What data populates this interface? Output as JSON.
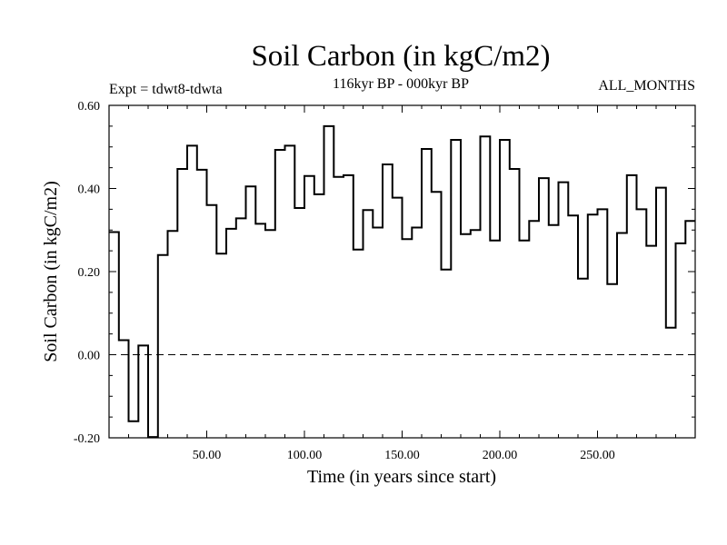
{
  "chart_data": {
    "type": "line",
    "style": "step",
    "title": "Soil Carbon (in kgC/m2)",
    "subtitle": "116kyr BP - 000kyr BP",
    "left_note": "Expt = tdwt8-tdwta",
    "right_note": "ALL_MONTHS",
    "xlabel": "Time (in years since start)",
    "ylabel": "Soil Carbon (in kgC/m2)",
    "xlim": [
      0,
      300
    ],
    "ylim": [
      -0.2,
      0.6
    ],
    "xticks": [
      50,
      100,
      150,
      200,
      250
    ],
    "xtick_labels": [
      "50.00",
      "100.00",
      "150.00",
      "200.00",
      "250.00"
    ],
    "yticks": [
      -0.2,
      0.0,
      0.2,
      0.4,
      0.6
    ],
    "ytick_labels": [
      "-0.20",
      "0.00",
      "0.20",
      "0.40",
      "0.60"
    ],
    "reference_line": 0.0,
    "series": [
      {
        "name": "tdwt8-tdwta",
        "x": [
          0,
          5,
          10,
          15,
          20,
          25,
          30,
          35,
          40,
          45,
          50,
          55,
          60,
          65,
          70,
          75,
          80,
          85,
          90,
          95,
          100,
          105,
          110,
          115,
          120,
          125,
          130,
          135,
          140,
          145,
          150,
          155,
          160,
          165,
          170,
          175,
          180,
          185,
          190,
          195,
          200,
          205,
          210,
          215,
          220,
          225,
          230,
          235,
          240,
          245,
          250,
          255,
          260,
          265,
          270,
          275,
          280,
          285,
          290,
          295
        ],
        "values": [
          0.295,
          0.035,
          -0.16,
          0.022,
          -0.198,
          0.24,
          0.298,
          0.447,
          0.503,
          0.445,
          0.36,
          0.243,
          0.303,
          0.328,
          0.405,
          0.315,
          0.3,
          0.493,
          0.503,
          0.353,
          0.43,
          0.386,
          0.55,
          0.428,
          0.432,
          0.253,
          0.348,
          0.306,
          0.458,
          0.378,
          0.278,
          0.306,
          0.495,
          0.392,
          0.205,
          0.517,
          0.29,
          0.3,
          0.525,
          0.275,
          0.517,
          0.447,
          0.275,
          0.322,
          0.425,
          0.312,
          0.415,
          0.335,
          0.183,
          0.337,
          0.35,
          0.17,
          0.293,
          0.432,
          0.35,
          0.262,
          0.402,
          0.065,
          0.268,
          0.322
        ]
      }
    ]
  }
}
